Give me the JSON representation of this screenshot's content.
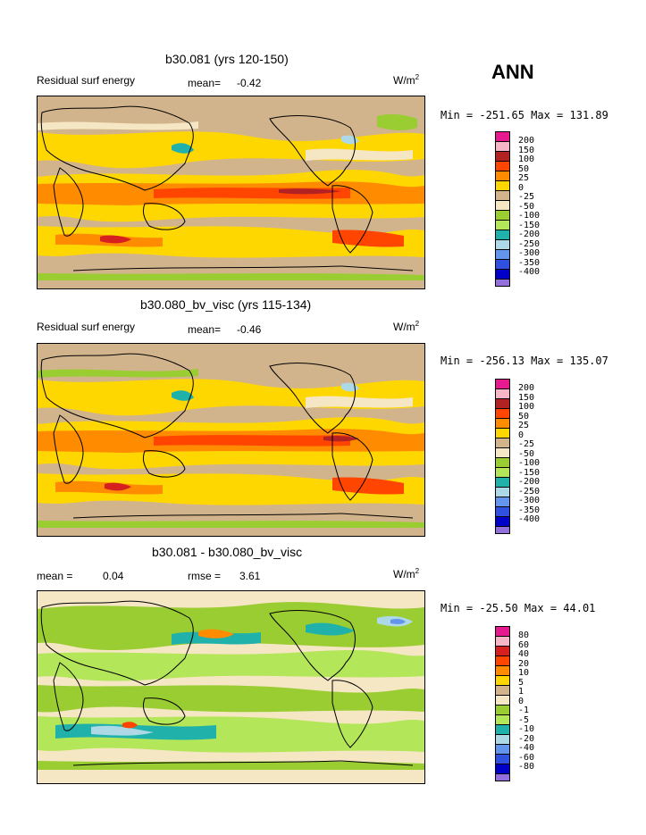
{
  "season": "ANN",
  "units_label": "W/m",
  "units_exp": "2",
  "panel1": {
    "title": "b30.081 (yrs 120-150)",
    "variable": "Residual surf energy",
    "mean_label": "mean=",
    "mean_value": "-0.42",
    "min_max": "Min = -251.65 Max = 131.89",
    "levels": [
      "200",
      "150",
      "100",
      "50",
      "25",
      "0",
      "-25",
      "-50",
      "-100",
      "-150",
      "-200",
      "-250",
      "-300",
      "-350",
      "-400"
    ]
  },
  "panel2": {
    "title": "b30.080_bv_visc (yrs 115-134)",
    "variable": "Residual surf energy",
    "mean_label": "mean=",
    "mean_value": "-0.46",
    "min_max": "Min = -256.13 Max = 135.07",
    "levels": [
      "200",
      "150",
      "100",
      "50",
      "25",
      "0",
      "-25",
      "-50",
      "-100",
      "-150",
      "-200",
      "-250",
      "-300",
      "-350",
      "-400"
    ]
  },
  "panel3": {
    "title": "b30.081 - b30.080_bv_visc",
    "mean_label": "mean =",
    "mean_value": "0.04",
    "rmse_label": "rmse =",
    "rmse_value": "3.61",
    "min_max": "Min = -25.50 Max =  44.01",
    "levels": [
      "80",
      "60",
      "40",
      "20",
      "10",
      "5",
      "1",
      "0",
      "-1",
      "-5",
      "-10",
      "-20",
      "-40",
      "-60",
      "-80"
    ]
  },
  "colors_main": [
    "#e6198f",
    "#f7b6c8",
    "#b22222",
    "#ff4500",
    "#ff8c00",
    "#ffd700",
    "#d2b48c",
    "#f5e6c4",
    "#9acd32",
    "#b4e65a",
    "#20b2aa",
    "#add8e6",
    "#6495ed",
    "#3050e0",
    "#0000c8",
    "#9370db"
  ],
  "colors_diff": [
    "#e6198f",
    "#f7b6c8",
    "#d62020",
    "#ff4500",
    "#ff8c00",
    "#ffd700",
    "#d2b48c",
    "#f5e6c4",
    "#9acd32",
    "#b4e65a",
    "#20b2aa",
    "#add8e6",
    "#6495ed",
    "#3050e0",
    "#0000c8",
    "#9370db"
  ]
}
